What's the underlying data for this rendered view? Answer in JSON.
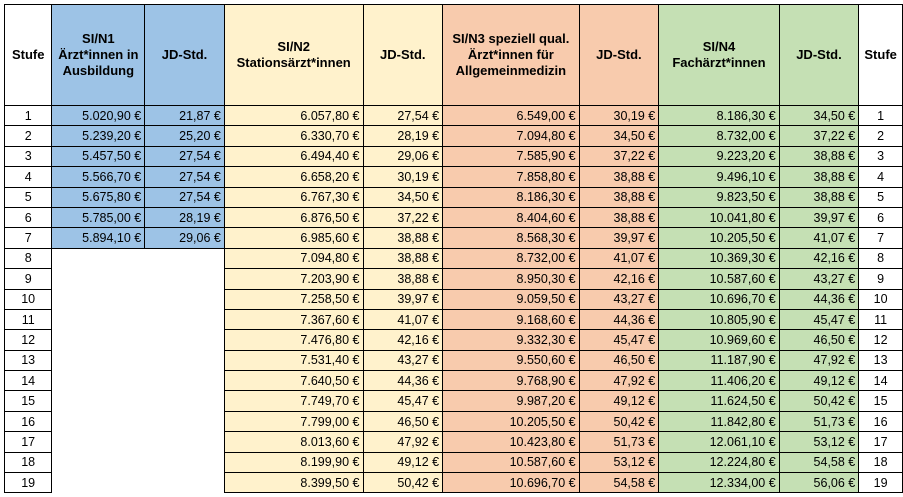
{
  "headers": {
    "stufe": "Stufe",
    "n1": "SI/N1 Ärzt*innen in Ausbildung",
    "n1_jd": "JD-Std.",
    "n2": "SI/N2 Stationsärzt*innen",
    "n2_jd": "JD-Std.",
    "n3": "SI/N3 speziell qual. Ärzt*innen für Allgemeinmedizin",
    "n3_jd": "JD-Std.",
    "n4": "SI/N4 Fachärzt*innen",
    "n4_jd": "JD-Std.",
    "stufe_right": "Stufe"
  },
  "colors": {
    "n1": "#9dc3e6",
    "n2": "#fff2cc",
    "n3": "#f8cbad",
    "n4": "#c5e0b4"
  },
  "rows": [
    {
      "stufe": "1",
      "n1": "5.020,90 €",
      "n1_jd": "21,87 €",
      "n2": "6.057,80 €",
      "n2_jd": "27,54 €",
      "n3": "6.549,00 €",
      "n3_jd": "30,19 €",
      "n4": "8.186,30 €",
      "n4_jd": "34,50 €"
    },
    {
      "stufe": "2",
      "n1": "5.239,20 €",
      "n1_jd": "25,20 €",
      "n2": "6.330,70 €",
      "n2_jd": "28,19 €",
      "n3": "7.094,80 €",
      "n3_jd": "34,50 €",
      "n4": "8.732,00 €",
      "n4_jd": "37,22 €"
    },
    {
      "stufe": "3",
      "n1": "5.457,50 €",
      "n1_jd": "27,54 €",
      "n2": "6.494,40 €",
      "n2_jd": "29,06 €",
      "n3": "7.585,90 €",
      "n3_jd": "37,22 €",
      "n4": "9.223,20 €",
      "n4_jd": "38,88 €"
    },
    {
      "stufe": "4",
      "n1": "5.566,70 €",
      "n1_jd": "27,54 €",
      "n2": "6.658,20 €",
      "n2_jd": "30,19 €",
      "n3": "7.858,80 €",
      "n3_jd": "38,88 €",
      "n4": "9.496,10 €",
      "n4_jd": "38,88 €"
    },
    {
      "stufe": "5",
      "n1": "5.675,80 €",
      "n1_jd": "27,54 €",
      "n2": "6.767,30 €",
      "n2_jd": "34,50 €",
      "n3": "8.186,30 €",
      "n3_jd": "38,88 €",
      "n4": "9.823,50 €",
      "n4_jd": "38,88 €"
    },
    {
      "stufe": "6",
      "n1": "5.785,00 €",
      "n1_jd": "28,19 €",
      "n2": "6.876,50 €",
      "n2_jd": "37,22 €",
      "n3": "8.404,60 €",
      "n3_jd": "38,88 €",
      "n4": "10.041,80 €",
      "n4_jd": "39,97 €"
    },
    {
      "stufe": "7",
      "n1": "5.894,10 €",
      "n1_jd": "29,06 €",
      "n2": "6.985,60 €",
      "n2_jd": "38,88 €",
      "n3": "8.568,30 €",
      "n3_jd": "39,97 €",
      "n4": "10.205,50 €",
      "n4_jd": "41,07 €"
    },
    {
      "stufe": "8",
      "n2": "7.094,80 €",
      "n2_jd": "38,88 €",
      "n3": "8.732,00 €",
      "n3_jd": "41,07 €",
      "n4": "10.369,30 €",
      "n4_jd": "42,16 €"
    },
    {
      "stufe": "9",
      "n2": "7.203,90 €",
      "n2_jd": "38,88 €",
      "n3": "8.950,30 €",
      "n3_jd": "42,16 €",
      "n4": "10.587,60 €",
      "n4_jd": "43,27 €"
    },
    {
      "stufe": "10",
      "n2": "7.258,50 €",
      "n2_jd": "39,97 €",
      "n3": "9.059,50 €",
      "n3_jd": "43,27 €",
      "n4": "10.696,70 €",
      "n4_jd": "44,36 €"
    },
    {
      "stufe": "11",
      "n2": "7.367,60 €",
      "n2_jd": "41,07 €",
      "n3": "9.168,60 €",
      "n3_jd": "44,36 €",
      "n4": "10.805,90 €",
      "n4_jd": "45,47 €"
    },
    {
      "stufe": "12",
      "n2": "7.476,80 €",
      "n2_jd": "42,16 €",
      "n3": "9.332,30 €",
      "n3_jd": "45,47 €",
      "n4": "10.969,60 €",
      "n4_jd": "46,50 €"
    },
    {
      "stufe": "13",
      "n2": "7.531,40 €",
      "n2_jd": "43,27 €",
      "n3": "9.550,60 €",
      "n3_jd": "46,50 €",
      "n4": "11.187,90 €",
      "n4_jd": "47,92 €"
    },
    {
      "stufe": "14",
      "n2": "7.640,50 €",
      "n2_jd": "44,36 €",
      "n3": "9.768,90 €",
      "n3_jd": "47,92 €",
      "n4": "11.406,20 €",
      "n4_jd": "49,12 €"
    },
    {
      "stufe": "15",
      "n2": "7.749,70 €",
      "n2_jd": "45,47 €",
      "n3": "9.987,20 €",
      "n3_jd": "49,12 €",
      "n4": "11.624,50 €",
      "n4_jd": "50,42 €"
    },
    {
      "stufe": "16",
      "n2": "7.799,00 €",
      "n2_jd": "46,50 €",
      "n3": "10.205,50 €",
      "n3_jd": "50,42 €",
      "n4": "11.842,80 €",
      "n4_jd": "51,73 €"
    },
    {
      "stufe": "17",
      "n2": "8.013,60 €",
      "n2_jd": "47,92 €",
      "n3": "10.423,80 €",
      "n3_jd": "51,73 €",
      "n4": "12.061,10 €",
      "n4_jd": "53,12 €"
    },
    {
      "stufe": "18",
      "n2": "8.199,90 €",
      "n2_jd": "49,12 €",
      "n3": "10.587,60 €",
      "n3_jd": "53,12 €",
      "n4": "12.224,80 €",
      "n4_jd": "54,58 €"
    },
    {
      "stufe": "19",
      "n2": "8.399,50 €",
      "n2_jd": "50,42 €",
      "n3": "10.696,70 €",
      "n3_jd": "54,58 €",
      "n4": "12.334,00 €",
      "n4_jd": "56,06 €"
    }
  ]
}
